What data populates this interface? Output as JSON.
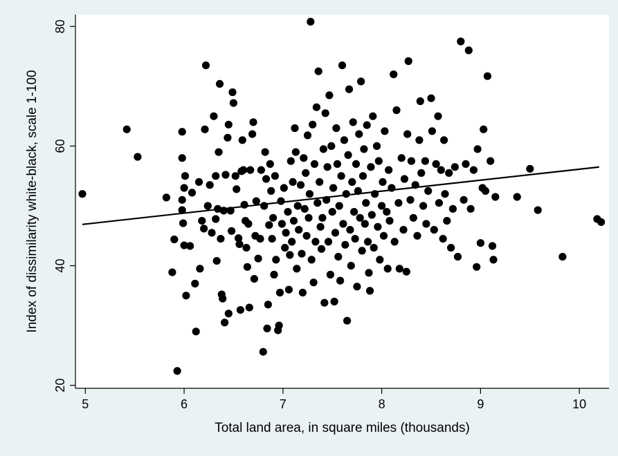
{
  "chart_data": {
    "type": "scatter",
    "title": "",
    "xlabel": "Total land area, in square miles (thousands)",
    "ylabel": "Index of dissimilarity white-black, scale 1-100",
    "xlim": [
      4.9,
      10.3
    ],
    "ylim": [
      19.5,
      82
    ],
    "xticks": [
      5,
      6,
      7,
      8,
      9,
      10
    ],
    "xtick_labels": [
      "5",
      "6",
      "7",
      "8",
      "9",
      "10"
    ],
    "yticks": [
      20,
      40,
      60,
      80
    ],
    "ytick_labels": [
      "20",
      "40",
      "60",
      "80"
    ],
    "grid": false,
    "legend": "none",
    "colors": {
      "background": "#eaf2f3",
      "plot_area": "#ffffff",
      "marker": "#000000",
      "fit_line": "#000000"
    },
    "fit_line": {
      "x": [
        4.97,
        10.2
      ],
      "y": [
        46.9,
        56.5
      ]
    },
    "series": [
      {
        "points": [
          [
            4.97,
            52.0
          ],
          [
            5.42,
            62.8
          ],
          [
            5.53,
            58.2
          ],
          [
            5.82,
            51.4
          ],
          [
            5.88,
            38.9
          ],
          [
            5.9,
            44.4
          ],
          [
            5.93,
            22.4
          ],
          [
            5.98,
            62.4
          ],
          [
            5.98,
            58.0
          ],
          [
            5.98,
            51.0
          ],
          [
            5.98,
            49.3
          ],
          [
            5.99,
            47.1
          ],
          [
            6.0,
            43.4
          ],
          [
            6.0,
            53.0
          ],
          [
            6.01,
            55.0
          ],
          [
            6.02,
            35.0
          ],
          [
            6.06,
            43.3
          ],
          [
            6.08,
            52.2
          ],
          [
            6.11,
            37.0
          ],
          [
            6.12,
            29.0
          ],
          [
            6.15,
            54.0
          ],
          [
            6.16,
            39.5
          ],
          [
            6.18,
            47.5
          ],
          [
            6.2,
            46.2
          ],
          [
            6.21,
            62.8
          ],
          [
            6.22,
            73.5
          ],
          [
            6.24,
            50.0
          ],
          [
            6.26,
            53.5
          ],
          [
            6.28,
            45.5
          ],
          [
            6.3,
            65.0
          ],
          [
            6.32,
            55.0
          ],
          [
            6.32,
            47.8
          ],
          [
            6.33,
            40.8
          ],
          [
            6.34,
            49.5
          ],
          [
            6.35,
            59.0
          ],
          [
            6.36,
            70.4
          ],
          [
            6.37,
            44.5
          ],
          [
            6.38,
            35.2
          ],
          [
            6.39,
            34.5
          ],
          [
            6.4,
            49.2
          ],
          [
            6.41,
            30.5
          ],
          [
            6.42,
            55.2
          ],
          [
            6.44,
            61.4
          ],
          [
            6.45,
            63.6
          ],
          [
            6.45,
            32.0
          ],
          [
            6.47,
            49.2
          ],
          [
            6.48,
            45.8
          ],
          [
            6.49,
            69.0
          ],
          [
            6.5,
            67.2
          ],
          [
            6.52,
            55.0
          ],
          [
            6.53,
            52.8
          ],
          [
            6.55,
            44.6
          ],
          [
            6.56,
            43.6
          ],
          [
            6.57,
            32.6
          ],
          [
            6.58,
            55.8
          ],
          [
            6.59,
            61.0
          ],
          [
            6.6,
            56.0
          ],
          [
            6.61,
            50.2
          ],
          [
            6.62,
            47.5
          ],
          [
            6.63,
            43.0
          ],
          [
            6.64,
            39.8
          ],
          [
            6.65,
            47.0
          ],
          [
            6.66,
            33.0
          ],
          [
            6.67,
            56.0
          ],
          [
            6.69,
            62.0
          ],
          [
            6.7,
            64.0
          ],
          [
            6.71,
            37.8
          ],
          [
            6.72,
            45.0
          ],
          [
            6.73,
            50.8
          ],
          [
            6.75,
            41.2
          ],
          [
            6.77,
            44.5
          ],
          [
            6.78,
            56.0
          ],
          [
            6.8,
            25.6
          ],
          [
            6.81,
            50.0
          ],
          [
            6.82,
            59.0
          ],
          [
            6.83,
            54.5
          ],
          [
            6.84,
            29.5
          ],
          [
            6.85,
            33.5
          ],
          [
            6.86,
            46.8
          ],
          [
            6.87,
            57.0
          ],
          [
            6.88,
            52.5
          ],
          [
            6.89,
            44.5
          ],
          [
            6.9,
            48.0
          ],
          [
            6.91,
            38.5
          ],
          [
            6.92,
            55.0
          ],
          [
            6.93,
            41.0
          ],
          [
            6.95,
            29.2
          ],
          [
            6.96,
            30.0
          ],
          [
            6.97,
            35.5
          ],
          [
            6.98,
            50.8
          ],
          [
            6.99,
            47.0
          ],
          [
            7.01,
            53.0
          ],
          [
            7.02,
            43.0
          ],
          [
            7.03,
            45.5
          ],
          [
            7.05,
            49.0
          ],
          [
            7.06,
            36.0
          ],
          [
            7.07,
            41.8
          ],
          [
            7.08,
            57.5
          ],
          [
            7.09,
            44.0
          ],
          [
            7.1,
            54.0
          ],
          [
            7.11,
            47.5
          ],
          [
            7.12,
            63.0
          ],
          [
            7.13,
            59.0
          ],
          [
            7.14,
            39.5
          ],
          [
            7.15,
            50.0
          ],
          [
            7.16,
            46.0
          ],
          [
            7.18,
            53.5
          ],
          [
            7.19,
            42.0
          ],
          [
            7.2,
            35.5
          ],
          [
            7.21,
            58.0
          ],
          [
            7.22,
            49.5
          ],
          [
            7.23,
            55.5
          ],
          [
            7.24,
            45.0
          ],
          [
            7.25,
            61.8
          ],
          [
            7.26,
            48.0
          ],
          [
            7.27,
            52.0
          ],
          [
            7.28,
            80.8
          ],
          [
            7.29,
            41.0
          ],
          [
            7.3,
            63.6
          ],
          [
            7.31,
            37.2
          ],
          [
            7.32,
            57.0
          ],
          [
            7.33,
            44.0
          ],
          [
            7.34,
            66.5
          ],
          [
            7.35,
            50.5
          ],
          [
            7.36,
            72.5
          ],
          [
            7.37,
            54.0
          ],
          [
            7.38,
            46.5
          ],
          [
            7.39,
            42.8
          ],
          [
            7.4,
            48.0
          ],
          [
            7.41,
            59.5
          ],
          [
            7.42,
            33.8
          ],
          [
            7.43,
            65.5
          ],
          [
            7.44,
            51.0
          ],
          [
            7.45,
            56.5
          ],
          [
            7.46,
            44.0
          ],
          [
            7.47,
            68.5
          ],
          [
            7.48,
            38.5
          ],
          [
            7.49,
            60.0
          ],
          [
            7.5,
            49.0
          ],
          [
            7.51,
            53.0
          ],
          [
            7.52,
            34.0
          ],
          [
            7.53,
            45.5
          ],
          [
            7.54,
            63.0
          ],
          [
            7.55,
            57.0
          ],
          [
            7.56,
            41.5
          ],
          [
            7.57,
            50.0
          ],
          [
            7.58,
            37.5
          ],
          [
            7.59,
            55.0
          ],
          [
            7.6,
            73.5
          ],
          [
            7.61,
            47.0
          ],
          [
            7.62,
            61.0
          ],
          [
            7.63,
            43.5
          ],
          [
            7.64,
            52.0
          ],
          [
            7.65,
            30.8
          ],
          [
            7.66,
            58.5
          ],
          [
            7.67,
            69.5
          ],
          [
            7.68,
            46.0
          ],
          [
            7.69,
            40.0
          ],
          [
            7.7,
            54.0
          ],
          [
            7.71,
            64.0
          ],
          [
            7.72,
            49.0
          ],
          [
            7.73,
            44.5
          ],
          [
            7.74,
            57.0
          ],
          [
            7.75,
            36.5
          ],
          [
            7.76,
            52.5
          ],
          [
            7.77,
            62.0
          ],
          [
            7.78,
            48.0
          ],
          [
            7.79,
            70.8
          ],
          [
            7.8,
            42.5
          ],
          [
            7.81,
            55.0
          ],
          [
            7.82,
            59.5
          ],
          [
            7.83,
            47.0
          ],
          [
            7.84,
            50.5
          ],
          [
            7.85,
            63.5
          ],
          [
            7.86,
            44.0
          ],
          [
            7.87,
            38.8
          ],
          [
            7.88,
            35.8
          ],
          [
            7.89,
            56.5
          ],
          [
            7.9,
            48.5
          ],
          [
            7.91,
            65.0
          ],
          [
            7.92,
            43.0
          ],
          [
            7.93,
            52.0
          ],
          [
            7.95,
            60.0
          ],
          [
            7.96,
            46.5
          ],
          [
            7.97,
            57.5
          ],
          [
            7.98,
            41.0
          ],
          [
            8.0,
            50.0
          ],
          [
            8.01,
            54.0
          ],
          [
            8.02,
            45.0
          ],
          [
            8.03,
            62.5
          ],
          [
            8.05,
            49.0
          ],
          [
            8.06,
            39.5
          ],
          [
            8.07,
            56.0
          ],
          [
            8.08,
            47.5
          ],
          [
            8.1,
            53.0
          ],
          [
            8.12,
            72.0
          ],
          [
            8.13,
            44.0
          ],
          [
            8.15,
            66.0
          ],
          [
            8.17,
            50.5
          ],
          [
            8.18,
            39.5
          ],
          [
            8.2,
            58.0
          ],
          [
            8.22,
            46.0
          ],
          [
            8.23,
            54.5
          ],
          [
            8.25,
            39.0
          ],
          [
            8.26,
            62.0
          ],
          [
            8.27,
            74.2
          ],
          [
            8.29,
            51.0
          ],
          [
            8.3,
            57.5
          ],
          [
            8.32,
            48.0
          ],
          [
            8.34,
            53.5
          ],
          [
            8.36,
            45.0
          ],
          [
            8.38,
            61.0
          ],
          [
            8.39,
            67.5
          ],
          [
            8.4,
            55.5
          ],
          [
            8.42,
            50.0
          ],
          [
            8.44,
            57.5
          ],
          [
            8.45,
            47.0
          ],
          [
            8.47,
            52.5
          ],
          [
            8.5,
            68.0
          ],
          [
            8.51,
            62.5
          ],
          [
            8.53,
            46.0
          ],
          [
            8.55,
            57.0
          ],
          [
            8.57,
            65.0
          ],
          [
            8.58,
            50.5
          ],
          [
            8.6,
            56.0
          ],
          [
            8.62,
            44.5
          ],
          [
            8.63,
            61.0
          ],
          [
            8.64,
            52.0
          ],
          [
            8.66,
            47.5
          ],
          [
            8.68,
            55.5
          ],
          [
            8.7,
            43.0
          ],
          [
            8.72,
            49.5
          ],
          [
            8.74,
            56.5
          ],
          [
            8.77,
            41.5
          ],
          [
            8.8,
            77.5
          ],
          [
            8.83,
            51.0
          ],
          [
            8.85,
            57.0
          ],
          [
            8.88,
            76.0
          ],
          [
            8.9,
            49.5
          ],
          [
            8.93,
            56.0
          ],
          [
            8.96,
            39.8
          ],
          [
            8.97,
            59.5
          ],
          [
            9.0,
            43.8
          ],
          [
            9.02,
            53.0
          ],
          [
            9.03,
            62.8
          ],
          [
            9.05,
            52.5
          ],
          [
            9.07,
            71.7
          ],
          [
            9.1,
            57.5
          ],
          [
            9.12,
            43.3
          ],
          [
            9.13,
            41.0
          ],
          [
            9.15,
            51.5
          ],
          [
            9.37,
            51.5
          ],
          [
            9.5,
            56.2
          ],
          [
            9.58,
            49.3
          ],
          [
            9.83,
            41.5
          ],
          [
            10.18,
            47.8
          ],
          [
            10.22,
            47.3
          ]
        ]
      }
    ]
  }
}
